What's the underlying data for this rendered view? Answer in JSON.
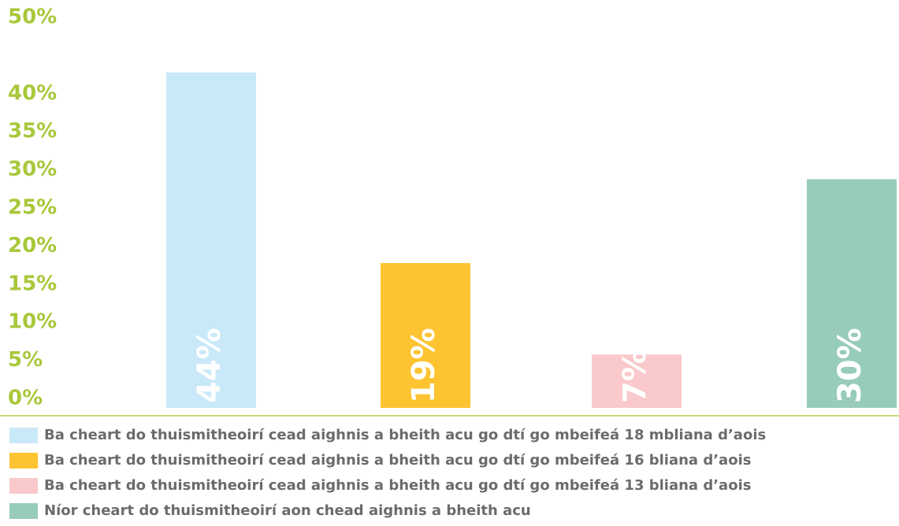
{
  "chart_data": {
    "type": "bar",
    "series": [
      {
        "name": "Ba cheart do thuismitheoirí cead aighnis a bheith acu go dtí go mbeifeá 18 mbliana d’aois",
        "color": "#c9e9f8",
        "values": [
          44
        ],
        "value_labels": [
          "44%"
        ]
      },
      {
        "name": "Ba cheart do thuismitheoirí cead aighnis a bheith acu go dtí go mbeifeá 16 bliana d’aois",
        "color": "#fdc331",
        "values": [
          19
        ],
        "value_labels": [
          "19%"
        ]
      },
      {
        "name": "Ba cheart do thuismitheoirí cead aighnis a bheith acu go dtí go mbeifeá 13 bliana d’aois",
        "color": "#f9c9cb",
        "values": [
          7
        ],
        "value_labels": [
          "7%"
        ]
      },
      {
        "name": "Níor cheart do thuismitheoirí aon chead aighnis a bheith acu",
        "color": "#97ccb8",
        "values": [
          30
        ],
        "value_labels": [
          "30%"
        ]
      }
    ],
    "ylim": [
      0,
      50
    ],
    "yticks": [
      {
        "value": 0,
        "label": "0%"
      },
      {
        "value": 5,
        "label": "5%"
      },
      {
        "value": 10,
        "label": "10%"
      },
      {
        "value": 15,
        "label": "15%"
      },
      {
        "value": 20,
        "label": "20%"
      },
      {
        "value": 25,
        "label": "25%"
      },
      {
        "value": 30,
        "label": "30%"
      },
      {
        "value": 35,
        "label": "35%"
      },
      {
        "value": 40,
        "label": "40%"
      },
      {
        "value": 50,
        "label": "50%"
      }
    ],
    "legend": "bottom"
  }
}
